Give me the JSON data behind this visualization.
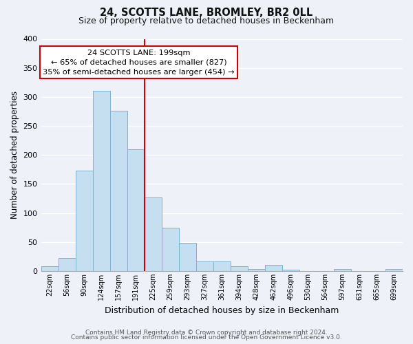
{
  "title": "24, SCOTTS LANE, BROMLEY, BR2 0LL",
  "subtitle": "Size of property relative to detached houses in Beckenham",
  "xlabel": "Distribution of detached houses by size in Beckenham",
  "ylabel": "Number of detached properties",
  "bar_labels": [
    "22sqm",
    "56sqm",
    "90sqm",
    "124sqm",
    "157sqm",
    "191sqm",
    "225sqm",
    "259sqm",
    "293sqm",
    "327sqm",
    "361sqm",
    "394sqm",
    "428sqm",
    "462sqm",
    "496sqm",
    "530sqm",
    "564sqm",
    "597sqm",
    "631sqm",
    "665sqm",
    "699sqm"
  ],
  "bar_heights": [
    8,
    22,
    173,
    310,
    276,
    210,
    127,
    75,
    48,
    17,
    16,
    8,
    3,
    10,
    2,
    0,
    0,
    3,
    0,
    0,
    3
  ],
  "bar_color": "#c6dff0",
  "bar_edge_color": "#7ab3d4",
  "vline_x": 5.5,
  "vline_color": "#cc0000",
  "annotation_title": "24 SCOTTS LANE: 199sqm",
  "annotation_line1": "← 65% of detached houses are smaller (827)",
  "annotation_line2": "35% of semi-detached houses are larger (454) →",
  "annotation_box_facecolor": "#ffffff",
  "annotation_box_edgecolor": "#cc0000",
  "ylim": [
    0,
    400
  ],
  "yticks": [
    0,
    50,
    100,
    150,
    200,
    250,
    300,
    350,
    400
  ],
  "footer1": "Contains HM Land Registry data © Crown copyright and database right 2024.",
  "footer2": "Contains public sector information licensed under the Open Government Licence v3.0.",
  "bg_color": "#eef2f8"
}
